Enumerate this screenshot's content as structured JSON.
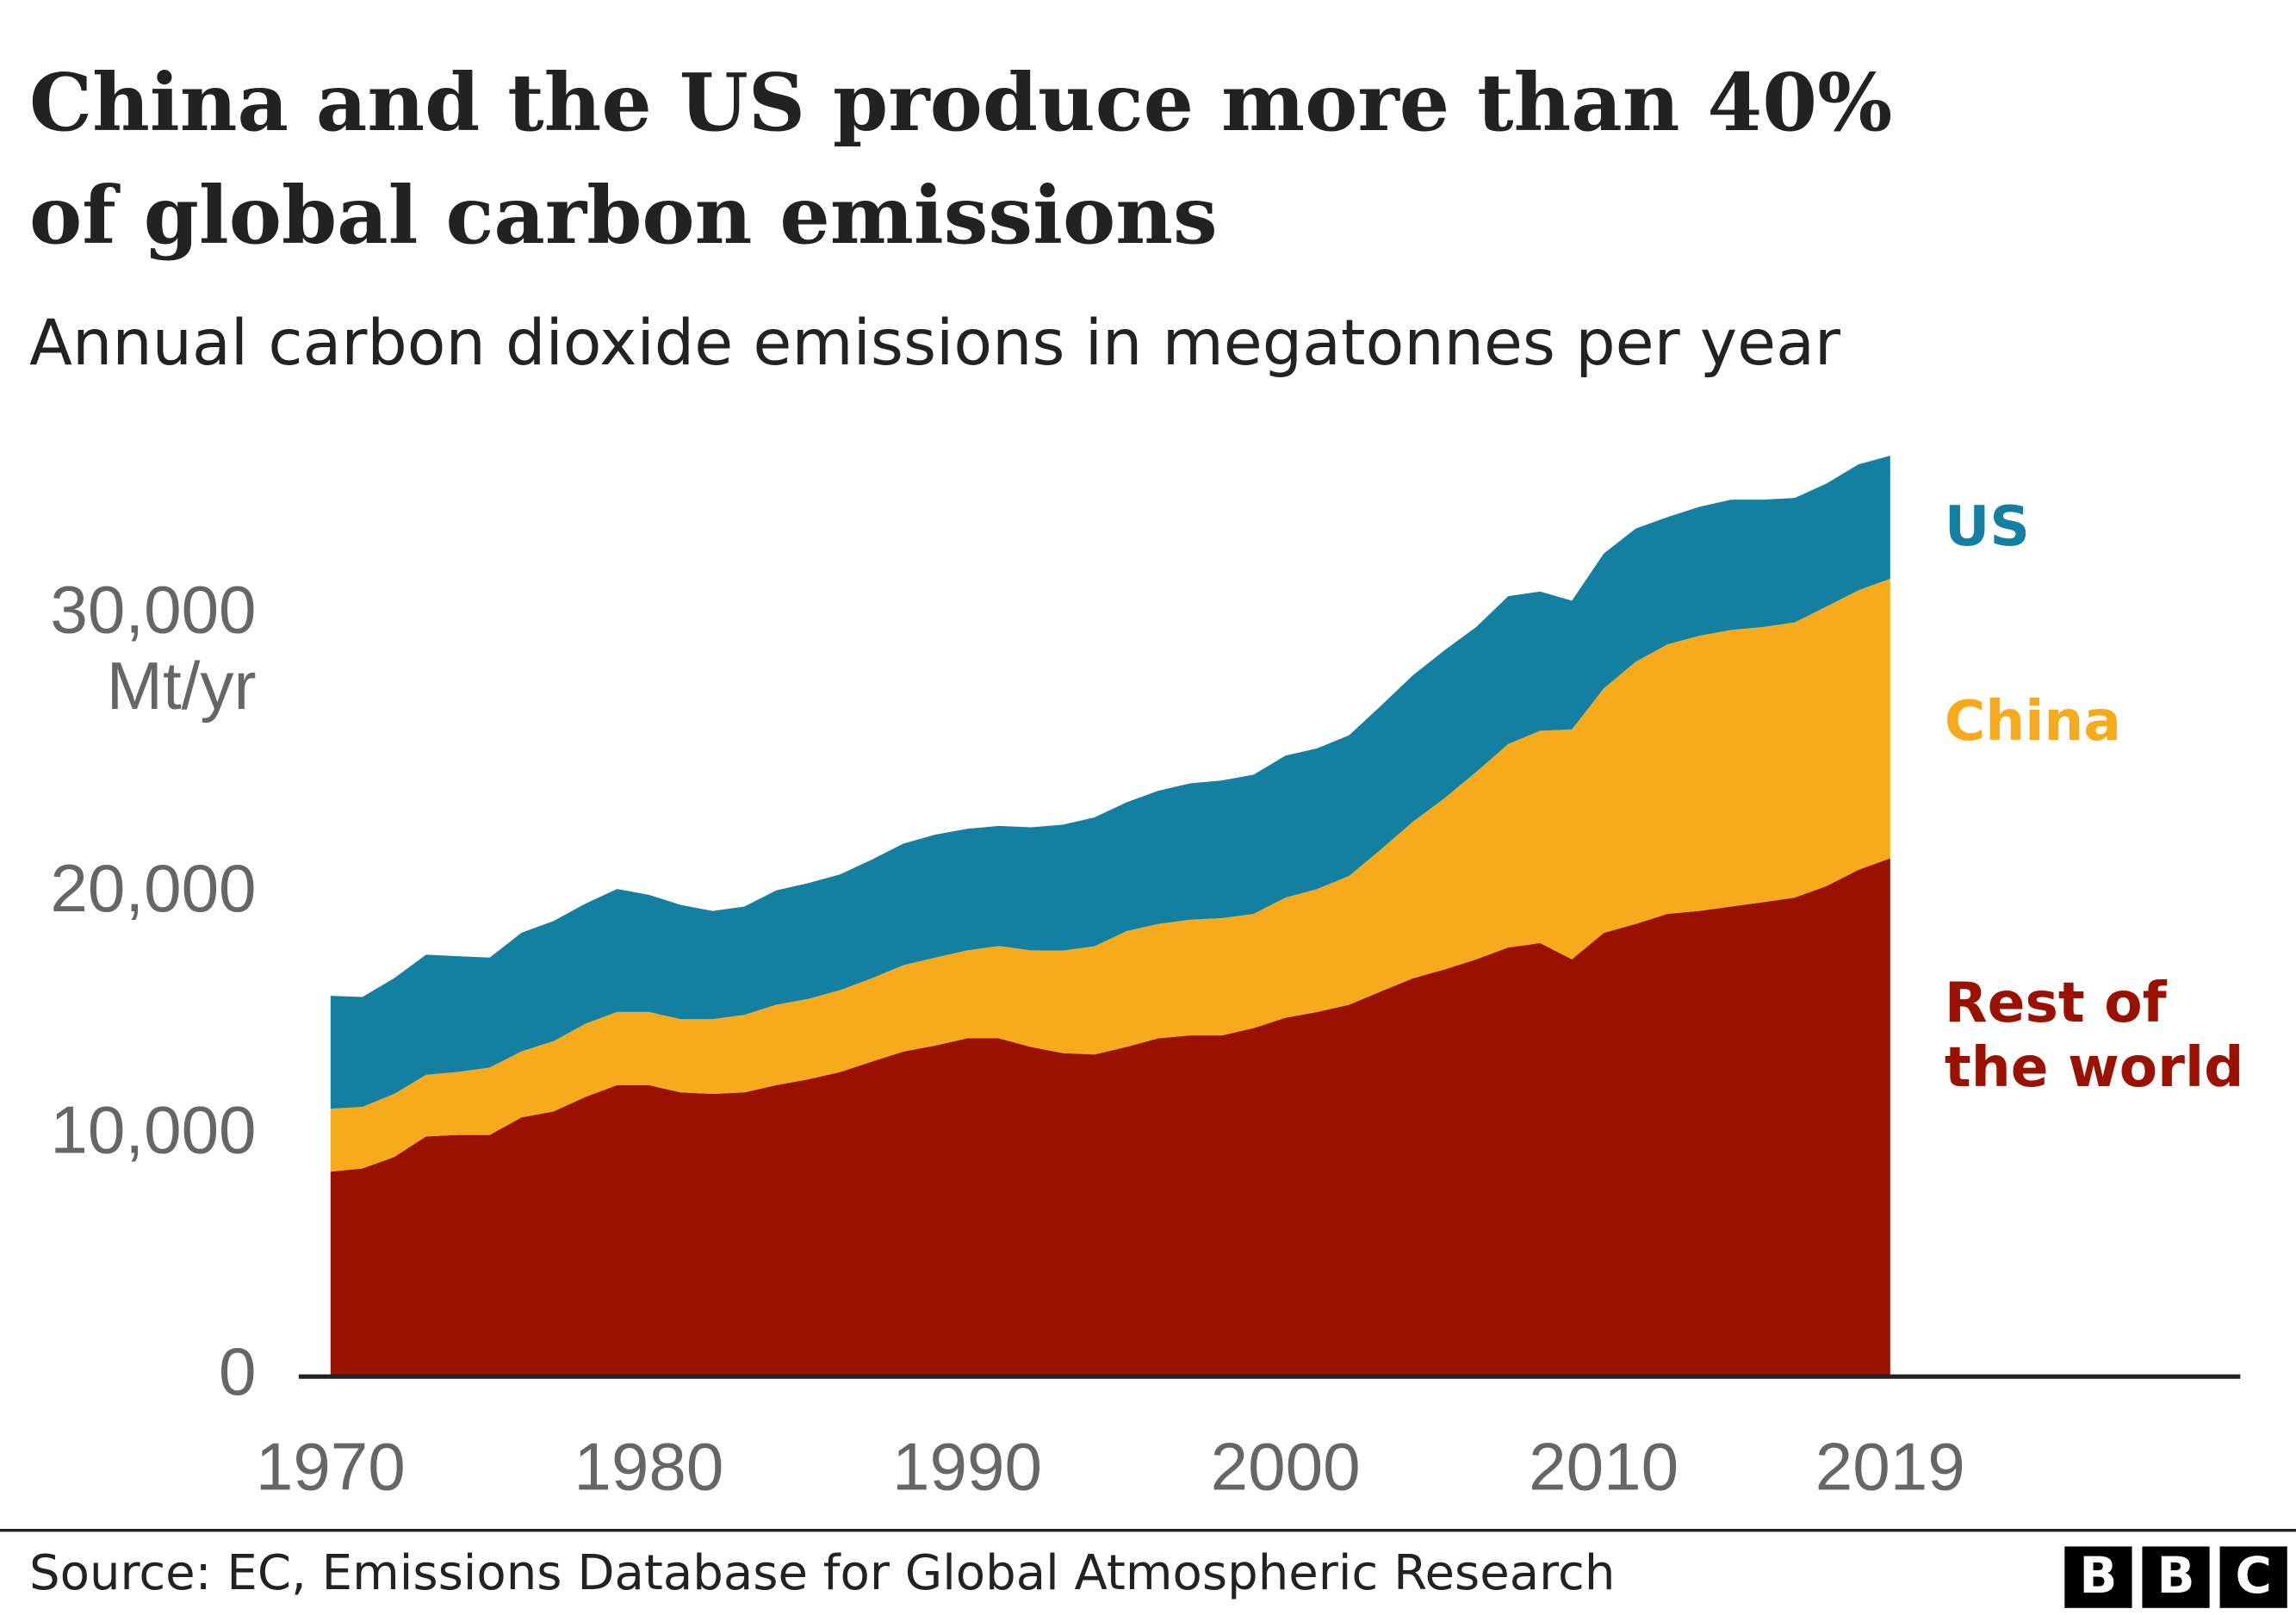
{
  "chart_data": {
    "type": "stacked_area",
    "title": [
      "China and the US produce more than 40%",
      "of global carbon emissions"
    ],
    "subtitle": "Annual carbon dioxide emissions in megatonnes per year",
    "y_unit": "Mt/yr",
    "x": [
      1970,
      1971,
      1972,
      1973,
      1974,
      1975,
      1976,
      1977,
      1978,
      1979,
      1980,
      1981,
      1982,
      1983,
      1984,
      1985,
      1986,
      1987,
      1988,
      1989,
      1990,
      1991,
      1992,
      1993,
      1994,
      1995,
      1996,
      1997,
      1998,
      1999,
      2000,
      2001,
      2002,
      2003,
      2004,
      2005,
      2006,
      2007,
      2008,
      2009,
      2010,
      2011,
      2012,
      2013,
      2014,
      2015,
      2016,
      2017,
      2018,
      2019
    ],
    "series": [
      {
        "name": "Rest of the world",
        "color": "#9a1100",
        "values": [
          8480,
          8610,
          9090,
          9940,
          10000,
          10000,
          10730,
          10970,
          11570,
          12060,
          12060,
          11760,
          11700,
          11760,
          12060,
          12300,
          12600,
          13030,
          13450,
          13700,
          14000,
          14000,
          13640,
          13390,
          13330,
          13640,
          14000,
          14120,
          14120,
          14420,
          14850,
          15090,
          15390,
          15940,
          16480,
          16850,
          17270,
          17760,
          17940,
          17270,
          18360,
          18730,
          19150,
          19270,
          19450,
          19630,
          19820,
          20300,
          20970,
          21450
        ]
      },
      {
        "name": "China",
        "color": "#f8aa1d",
        "values": [
          2610,
          2550,
          2610,
          2550,
          2610,
          2790,
          2730,
          2910,
          3030,
          3030,
          3030,
          3030,
          3090,
          3210,
          3330,
          3330,
          3390,
          3450,
          3580,
          3640,
          3640,
          3820,
          4000,
          4240,
          4480,
          4790,
          4730,
          4790,
          4850,
          4730,
          4970,
          5090,
          5330,
          5880,
          6480,
          7090,
          7760,
          8420,
          8790,
          9510,
          10120,
          10850,
          11150,
          11390,
          11450,
          11390,
          11390,
          11570,
          11570,
          11570
        ]
      },
      {
        "name": "US",
        "color": "#1380a1",
        "values": [
          4670,
          4550,
          4790,
          4970,
          4790,
          4550,
          4910,
          4970,
          4970,
          5090,
          4850,
          4730,
          4480,
          4480,
          4730,
          4790,
          4790,
          4910,
          5030,
          5090,
          5030,
          4970,
          5090,
          5210,
          5330,
          5330,
          5510,
          5640,
          5700,
          5760,
          5880,
          5820,
          5820,
          5940,
          6060,
          6120,
          6000,
          6120,
          5760,
          5330,
          5580,
          5510,
          5270,
          5330,
          5390,
          5270,
          5150,
          5090,
          5210,
          5090
        ]
      }
    ],
    "xlim": [
      1969,
      2030
    ],
    "ylim": [
      0,
      40000
    ],
    "xticks": [
      1970,
      1980,
      1990,
      2000,
      2010,
      2019
    ],
    "yticks": [
      0,
      {
        "value": 10000,
        "label": "10,000"
      },
      {
        "value": 20000,
        "label": "20,000"
      },
      {
        "value": 30000,
        "label": "30,000"
      }
    ],
    "grid": false,
    "source": "Source: EC, Emissions Database for Global Atmospheric Research",
    "logo": [
      "B",
      "B",
      "C"
    ]
  }
}
